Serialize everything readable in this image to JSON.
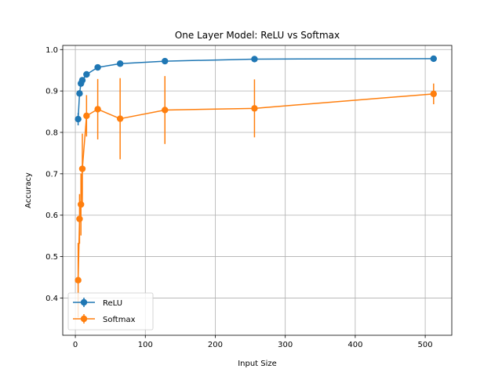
{
  "chart_data": {
    "type": "line",
    "title": "One Layer Model: ReLU vs Softmax",
    "xlabel": "Input Size",
    "ylabel": "Accuracy",
    "xlim": [
      -18,
      538
    ],
    "ylim": [
      0.31,
      1.01
    ],
    "xticks": [
      0,
      100,
      200,
      300,
      400,
      500
    ],
    "yticks": [
      0.4,
      0.5,
      0.6,
      0.7,
      0.8,
      0.9,
      1.0
    ],
    "xtick_labels": [
      "0",
      "100",
      "200",
      "300",
      "400",
      "500"
    ],
    "ytick_labels": [
      "0.4",
      "0.5",
      "0.6",
      "0.7",
      "0.8",
      "0.9",
      "1.0"
    ],
    "grid": true,
    "legend_position": "lower-left",
    "series": [
      {
        "name": "ReLU",
        "color": "#1f77b4",
        "x": [
          4,
          6,
          8,
          10,
          16,
          32,
          64,
          128,
          256,
          512
        ],
        "y": [
          0.832,
          0.894,
          0.918,
          0.926,
          0.94,
          0.957,
          0.966,
          0.972,
          0.977,
          0.978
        ],
        "err": [
          0.015,
          0.008,
          0.006,
          0.006,
          0.004,
          0.003,
          0.002,
          0.002,
          0.001,
          0.001
        ]
      },
      {
        "name": "Softmax",
        "color": "#ff7f0e",
        "x": [
          4,
          6,
          8,
          10,
          16,
          32,
          64,
          128,
          256,
          512
        ],
        "y": [
          0.443,
          0.591,
          0.626,
          0.712,
          0.84,
          0.856,
          0.833,
          0.854,
          0.858,
          0.893
        ],
        "err": [
          0.09,
          0.06,
          0.075,
          0.085,
          0.05,
          0.073,
          0.098,
          0.082,
          0.07,
          0.025
        ]
      }
    ]
  }
}
